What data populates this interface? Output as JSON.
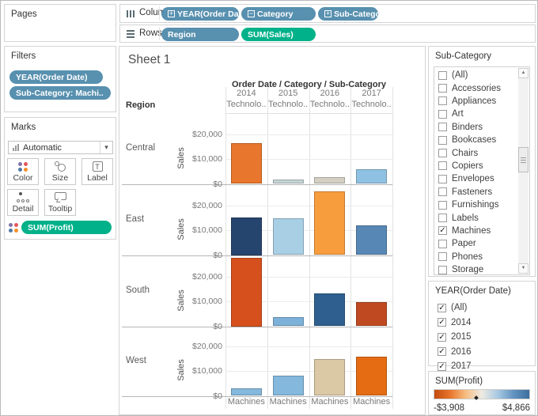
{
  "shelf": {
    "pages_label": "Pages",
    "columns_label": "Columns",
    "rows_label": "Rows",
    "columns_pills": [
      {
        "label": "YEAR(Order Date)",
        "kind": "dimension",
        "expand": "+"
      },
      {
        "label": "Category",
        "kind": "dimension",
        "expand": "−"
      },
      {
        "label": "Sub-Category",
        "kind": "dimension",
        "expand": "+"
      }
    ],
    "rows_pills": [
      {
        "label": "Region",
        "kind": "dimension"
      },
      {
        "label": "SUM(Sales)",
        "kind": "measure"
      }
    ]
  },
  "filters_card": {
    "title": "Filters",
    "pills": [
      "YEAR(Order Date)",
      "Sub-Category: Machi.."
    ]
  },
  "marks_card": {
    "title": "Marks",
    "mark_type": "Automatic",
    "buttons": [
      "Color",
      "Size",
      "Label",
      "Detail",
      "Tooltip"
    ],
    "encoding_pill": "SUM(Profit)"
  },
  "sheet": {
    "title": "Sheet 1",
    "column_header": "Order Date / Category / Sub-Category",
    "row_header": "Region",
    "y_axis_title": "Sales",
    "y_tick_labels": [
      "$20,000",
      "$10,000",
      "$0"
    ]
  },
  "chart_data": {
    "type": "bar",
    "title": "Order Date / Category / Sub-Category",
    "facet_row_field": "Region",
    "facet_col_years": [
      "2014",
      "2015",
      "2016",
      "2017"
    ],
    "facet_col_sublabel": "Technolo..",
    "x_item_label": "Machines",
    "ylabel": "Sales",
    "ylim": [
      0,
      28000
    ],
    "y_gridlines": [
      10000,
      20000
    ],
    "color_encoding": "SUM(Profit), diverging orange (loss) to blue (profit)",
    "rows": [
      {
        "region": "Central",
        "values": [
          16200,
          1800,
          2700,
          5800
        ],
        "colors": [
          "#e8762d",
          "#c6d4d6",
          "#d3d0c3",
          "#8fc1e2"
        ]
      },
      {
        "region": "East",
        "values": [
          15000,
          14800,
          25500,
          12000
        ],
        "colors": [
          "#26456e",
          "#a9cfe5",
          "#f89d3e",
          "#5787b4"
        ]
      },
      {
        "region": "South",
        "values": [
          27500,
          3500,
          13200,
          9800
        ],
        "colors": [
          "#d6501e",
          "#7cb1d9",
          "#2e5f8e",
          "#bf4a22"
        ]
      },
      {
        "region": "West",
        "values": [
          3000,
          8200,
          14700,
          15700
        ],
        "colors": [
          "#84b8dc",
          "#84b8dc",
          "#dbc8a4",
          "#e56c13"
        ]
      }
    ]
  },
  "subcategory_card": {
    "title": "Sub-Category",
    "items": [
      {
        "label": "(All)",
        "checked": false
      },
      {
        "label": "Accessories",
        "checked": false
      },
      {
        "label": "Appliances",
        "checked": false
      },
      {
        "label": "Art",
        "checked": false
      },
      {
        "label": "Binders",
        "checked": false
      },
      {
        "label": "Bookcases",
        "checked": false
      },
      {
        "label": "Chairs",
        "checked": false
      },
      {
        "label": "Copiers",
        "checked": false
      },
      {
        "label": "Envelopes",
        "checked": false
      },
      {
        "label": "Fasteners",
        "checked": false
      },
      {
        "label": "Furnishings",
        "checked": false
      },
      {
        "label": "Labels",
        "checked": false
      },
      {
        "label": "Machines",
        "checked": true
      },
      {
        "label": "Paper",
        "checked": false
      },
      {
        "label": "Phones",
        "checked": false
      },
      {
        "label": "Storage",
        "checked": false
      }
    ]
  },
  "year_card": {
    "title": "YEAR(Order Date)",
    "items": [
      {
        "label": "(All)",
        "checked": true
      },
      {
        "label": "2014",
        "checked": true
      },
      {
        "label": "2015",
        "checked": true
      },
      {
        "label": "2016",
        "checked": true
      },
      {
        "label": "2017",
        "checked": true
      }
    ]
  },
  "profit_legend": {
    "title": "SUM(Profit)",
    "min_label": "-$3,908",
    "max_label": "$4,866",
    "marker_pos": 0.44,
    "gradient": [
      "#c44b0f",
      "#e8762d",
      "#f7bd80",
      "#edebe3",
      "#a7c8e2",
      "#6394c1",
      "#3c6e9f"
    ]
  },
  "palette": {
    "pill_blue": "#5890af",
    "pill_green": "#00b189",
    "color_button_dots": [
      "#8074a8",
      "#e15759",
      "#4e79a7",
      "#f28e2b"
    ]
  }
}
